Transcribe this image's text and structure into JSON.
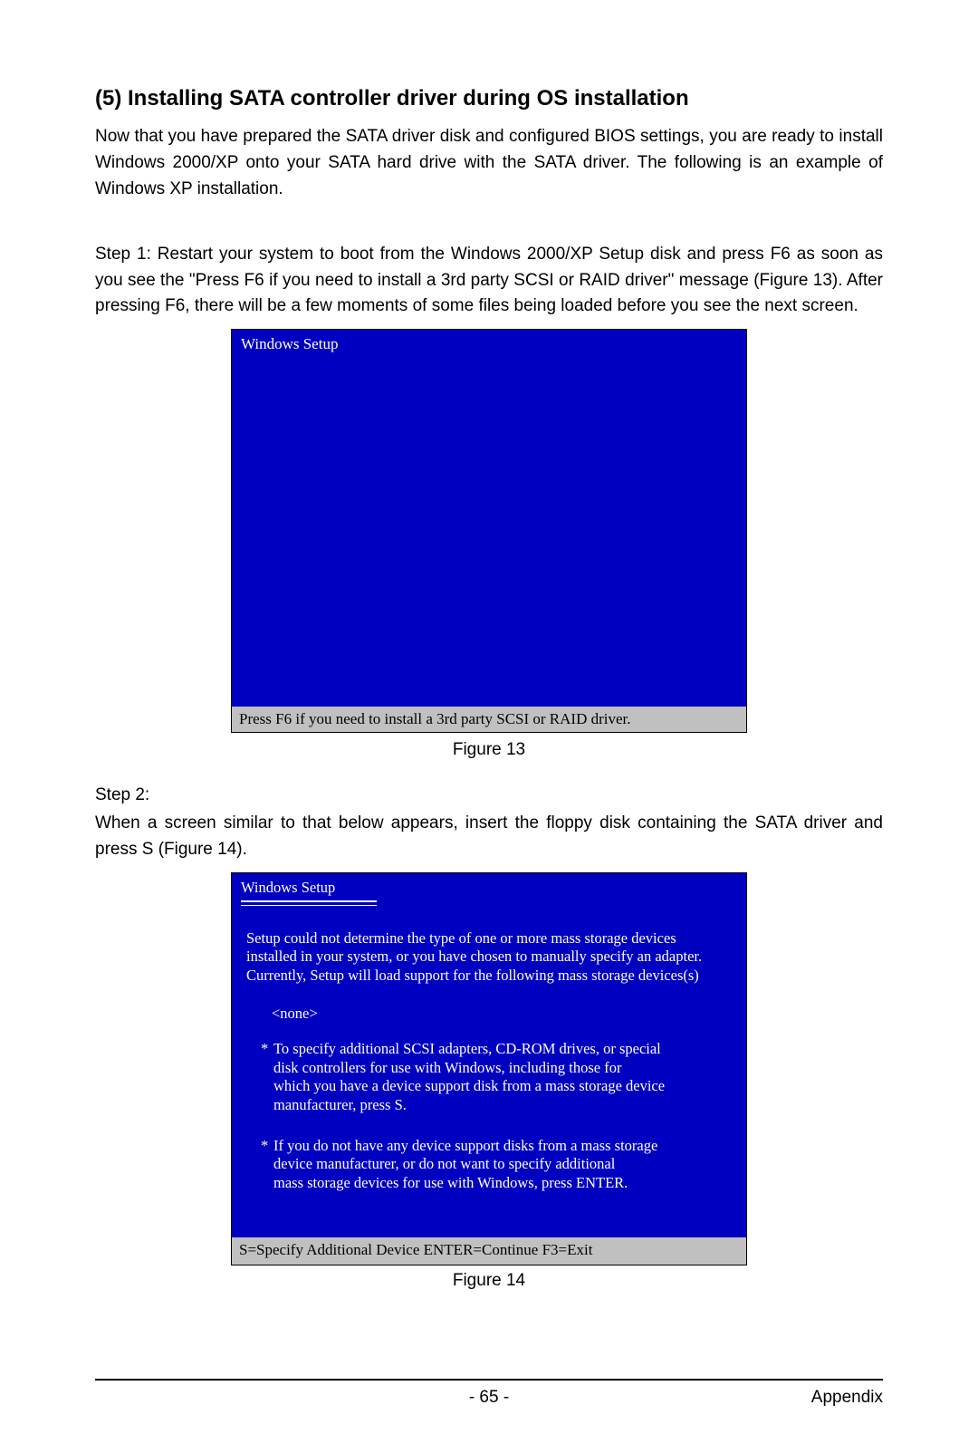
{
  "heading": "(5)  Installing SATA controller driver during OS installation",
  "intro": "Now that you have prepared the SATA driver disk and configured BIOS settings, you are ready to install Windows 2000/XP onto your SATA hard drive with the SATA driver. The following is an example of Windows XP installation.",
  "step1": "Step 1: Restart your system to boot from the Windows 2000/XP Setup disk and press F6 as soon as you see the \"Press F6 if you need to install a 3rd party SCSI or RAID driver\" message (Figure 13).  After pressing F6, there will be a few moments of some files being loaded before you see the next screen.",
  "figure13": {
    "title": "Windows Setup",
    "status": "Press F6 if you need to install  a 3rd party SCSI or RAID driver.",
    "background_color": "#0000c0",
    "status_bg": "#c0c0c0",
    "caption": "Figure 13"
  },
  "step2_label": "Step 2:",
  "step2_body": "When a screen similar to that below appears, insert the floppy disk containing the SATA driver and press S (Figure 14).",
  "figure14": {
    "title": "Windows Setup",
    "para_l1": "Setup could not determine the type of one or more mass storage devices",
    "para_l2": "installed in your system, or you have chosen to manually specify an adapter.",
    "para_l3": "Currently, Setup will load support for the following mass storage devices(s)",
    "none": "<none>",
    "b1_l1": "To specify additional SCSI adapters, CD-ROM drives, or special",
    "b1_l2": "disk  controllers for use with Windows, including those for",
    "b1_l3": "which you have a device support disk from a mass storage device",
    "b1_l4": "manufacturer, press S.",
    "b2_l1": "If you do not have any device support disks from a mass storage",
    "b2_l2": "device manufacturer, or do not want to specify additional",
    "b2_l3": "mass storage devices for use with Windows, press ENTER.",
    "foot": "S=Specify Additional Device   ENTER=Continue   F3=Exit",
    "caption": "Figure 14"
  },
  "footer": {
    "page": "- 65 -",
    "section": "Appendix"
  }
}
